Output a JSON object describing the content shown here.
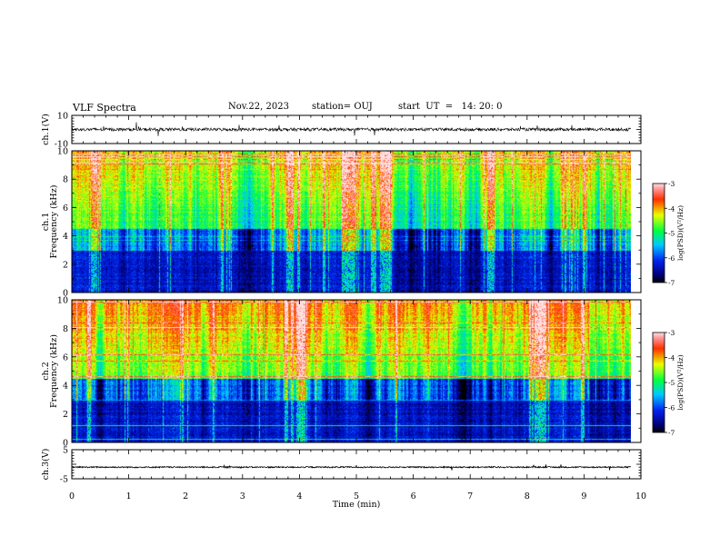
{
  "header": {
    "title": "VLF Spectra",
    "date": "Nov.22, 2023",
    "station": "station= OUJ",
    "start": "start  UT  =   14: 20: 0"
  },
  "chart_data": [
    {
      "type": "line",
      "panel": "ch1-waveform",
      "ylabel": "ch.1(V)",
      "ylim": [
        -10,
        10
      ],
      "y_ticks": [
        "10",
        "-10"
      ],
      "baseline": 0
    },
    {
      "type": "heatmap",
      "panel": "ch1-spectrogram",
      "ylabel_line1": "ch.1",
      "ylabel_line2": "Frequency (kHz)",
      "ylim": [
        0,
        10
      ],
      "y_ticks": [
        "0",
        "2",
        "4",
        "6",
        "8",
        "10"
      ],
      "colorbar": {
        "label": "log(PSD)(V²/Hz)",
        "range": [
          -7,
          -3
        ],
        "ticks": [
          "-3",
          "-4",
          "-5",
          "-6",
          "-7"
        ]
      }
    },
    {
      "type": "heatmap",
      "panel": "ch2-spectrogram",
      "ylabel_line1": "ch.2",
      "ylabel_line2": "Frequency (kHz)",
      "ylim": [
        0,
        10
      ],
      "y_ticks": [
        "0",
        "2",
        "4",
        "6",
        "8",
        "10"
      ],
      "colorbar": {
        "label": "log(PSD)(V²/Hz)",
        "range": [
          -7,
          -3
        ],
        "ticks": [
          "-3",
          "-4",
          "-5",
          "-6",
          "-7"
        ]
      }
    },
    {
      "type": "line",
      "panel": "ch3-waveform",
      "ylabel": "ch.3(V)",
      "ylim": [
        -5,
        5
      ],
      "y_ticks": [
        "5",
        "-5"
      ],
      "baseline": -1.0
    }
  ],
  "x_axis": {
    "label": "Time (min)",
    "xlim": [
      0,
      10
    ],
    "data_end": 9.83,
    "ticks": [
      "0",
      "1",
      "2",
      "3",
      "4",
      "5",
      "6",
      "7",
      "8",
      "9",
      "10"
    ]
  },
  "colors": {
    "frame": "#000000",
    "background": "#ffffff"
  }
}
